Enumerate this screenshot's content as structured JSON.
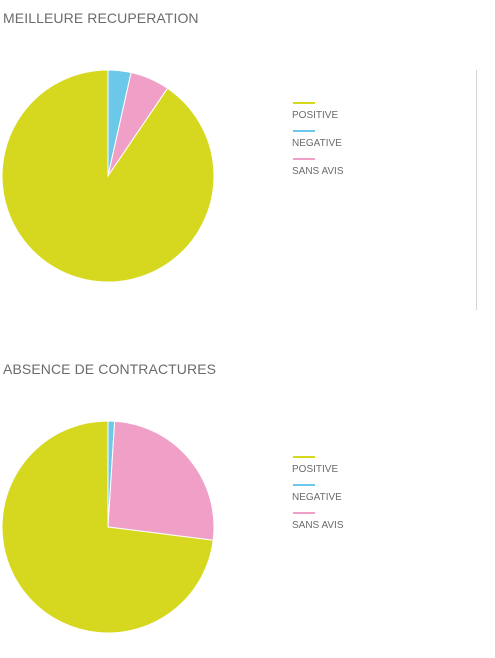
{
  "chart_data": [
    {
      "type": "pie",
      "title": "MEILLEURE RECUPERATION",
      "categories": [
        "POSITIVE",
        "NEGATIVE",
        "SANS AVIS"
      ],
      "values": [
        90.5,
        3.5,
        6.0
      ],
      "colors": [
        "#d6d81f",
        "#6cc8e8",
        "#f0a0c6"
      ],
      "legend": "right"
    },
    {
      "type": "pie",
      "title": "ABSENCE DE CONTRACTURES",
      "categories": [
        "POSITIVE",
        "NEGATIVE",
        "SANS AVIS"
      ],
      "values": [
        73.0,
        1.0,
        26.0
      ],
      "colors": [
        "#d6d81f",
        "#6cc8e8",
        "#f0a0c6"
      ],
      "legend": "right"
    }
  ]
}
